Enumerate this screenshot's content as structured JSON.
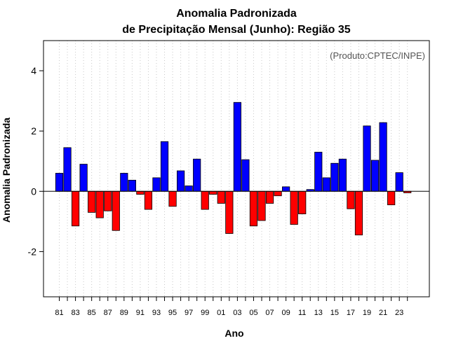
{
  "chart_data": {
    "type": "bar",
    "title_line1": "Anomalia Padronizada",
    "title_line2": "de Precipitação Mensal (Junho): Região 35",
    "credit": "(Produto:CPTEC/INPE)",
    "xlabel": "Ano",
    "ylabel": "Anomalia Padronizada",
    "ylim": [
      -3.5,
      5.0
    ],
    "yticks": [
      -2,
      0,
      2,
      4
    ],
    "ytick_labels": [
      "-2",
      "0",
      "2",
      "4"
    ],
    "grid": "vertical dotted",
    "colors": {
      "positive": "#0000ff",
      "negative": "#ff0000"
    },
    "years": [
      1981,
      1982,
      1983,
      1984,
      1985,
      1986,
      1987,
      1988,
      1989,
      1990,
      1991,
      1992,
      1993,
      1994,
      1995,
      1996,
      1997,
      1998,
      1999,
      2000,
      2001,
      2002,
      2003,
      2004,
      2005,
      2006,
      2007,
      2008,
      2009,
      2010,
      2011,
      2012,
      2013,
      2014,
      2015,
      2016,
      2017,
      2018,
      2019,
      2020,
      2021,
      2022,
      2023,
      2024
    ],
    "values": [
      0.6,
      1.45,
      -1.15,
      0.9,
      -0.7,
      -0.88,
      -0.65,
      -1.3,
      0.6,
      0.37,
      -0.1,
      -0.6,
      0.45,
      1.65,
      -0.5,
      0.68,
      0.18,
      1.07,
      -0.6,
      -0.1,
      -0.4,
      -1.4,
      2.95,
      1.05,
      -1.15,
      -0.97,
      -0.4,
      -0.15,
      0.15,
      -1.1,
      -0.75,
      0.06,
      1.3,
      0.45,
      0.93,
      1.07,
      -0.58,
      -1.45,
      2.17,
      1.03,
      2.28,
      -0.45,
      0.62,
      -0.05
    ],
    "xtick_labels": [
      "81",
      "83",
      "85",
      "87",
      "89",
      "91",
      "93",
      "95",
      "97",
      "99",
      "01",
      "03",
      "05",
      "07",
      "09",
      "11",
      "13",
      "15",
      "17",
      "19",
      "21",
      "23"
    ]
  }
}
